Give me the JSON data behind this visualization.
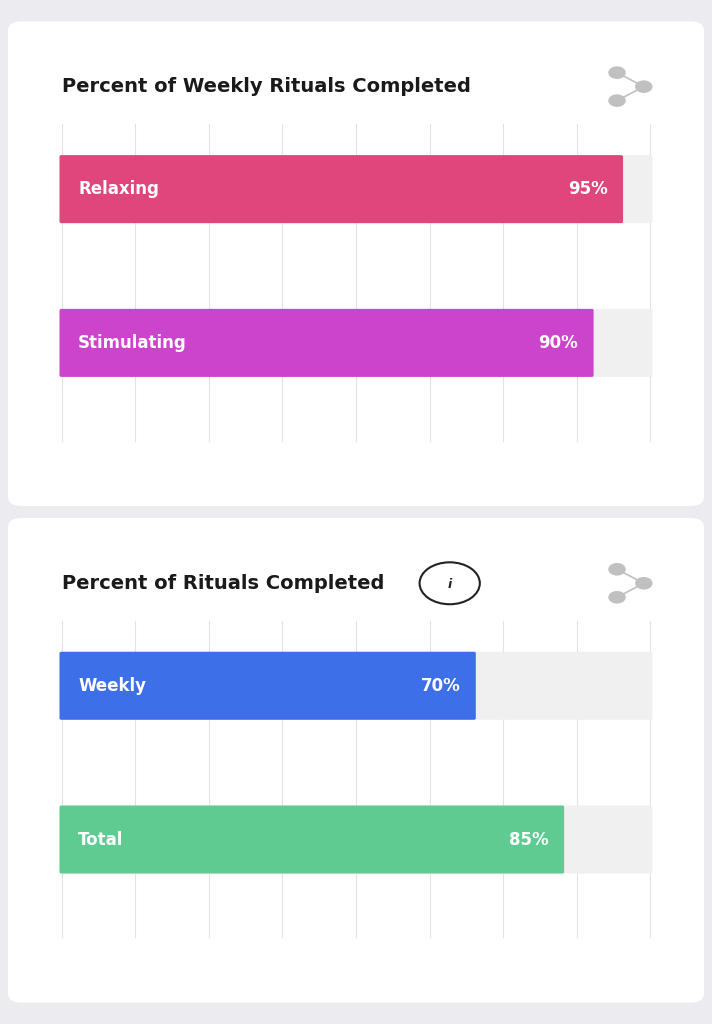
{
  "chart1": {
    "title": "Percent of Weekly Rituals Completed",
    "bars": [
      {
        "label": "Relaxing",
        "value": 95,
        "color": "#e0457b"
      },
      {
        "label": "Stimulating",
        "value": 90,
        "color": "#cc44cc"
      }
    ]
  },
  "chart2": {
    "title": "Percent of Rituals Completed",
    "bars": [
      {
        "label": "Weekly",
        "value": 70,
        "color": "#3d6fe8"
      },
      {
        "label": "Total",
        "value": 85,
        "color": "#5ecb91"
      }
    ]
  },
  "background_color": "#ebebf0",
  "card_color": "#ffffff",
  "grid_color": "#e2e2e2",
  "bar_bg_color": "#f0f0f0",
  "title_fontsize": 14,
  "bar_label_fontsize": 12,
  "bar_value_fontsize": 12,
  "share_icon_color": "#c0c0c0",
  "info_icon_color": "#222222"
}
